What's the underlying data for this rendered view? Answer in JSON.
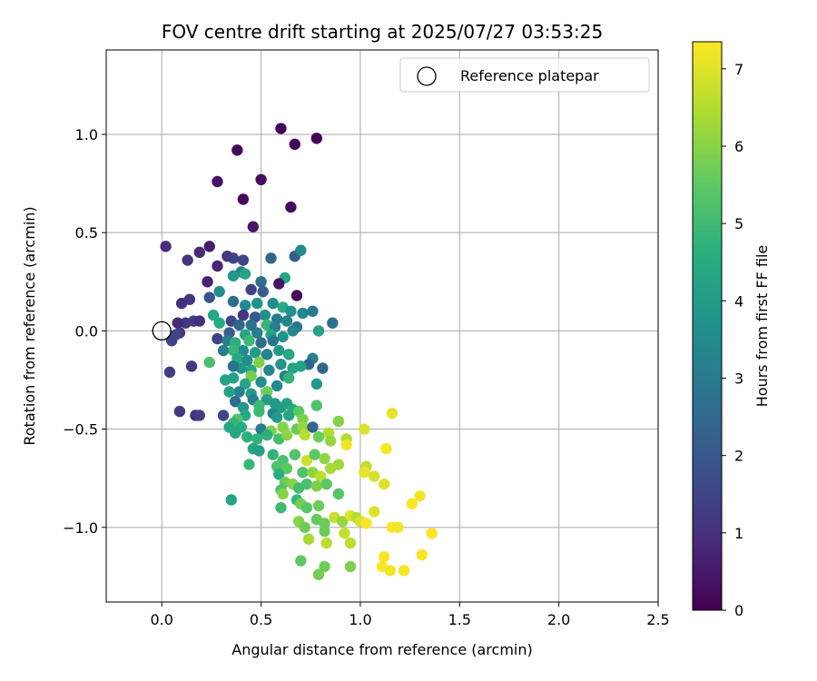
{
  "chart_data": {
    "type": "scatter",
    "title": "FOV centre drift starting at 2025/07/27 03:53:25",
    "xlabel": "Angular distance from reference (arcmin)",
    "ylabel": "Rotation from reference (arcmin)",
    "xlim": [
      -0.28,
      2.5
    ],
    "ylim": [
      -1.38,
      1.43
    ],
    "xticks": [
      0.0,
      0.5,
      1.0,
      1.5,
      2.0,
      2.5
    ],
    "xtick_labels": [
      "0.0",
      "0.5",
      "1.0",
      "1.5",
      "2.0",
      "2.5"
    ],
    "yticks": [
      -1.0,
      -0.5,
      0.0,
      0.5,
      1.0
    ],
    "ytick_labels": [
      "−1.0",
      "−0.5",
      "0.0",
      "0.5",
      "1.0"
    ],
    "grid": true,
    "legend": {
      "position": "top-right",
      "entries": [
        "Reference platepar"
      ]
    },
    "reference_point": {
      "x": 0.0,
      "y": 0.0,
      "label": "Reference platepar"
    },
    "colorbar": {
      "label": "Hours from first FF file",
      "colormap": "viridis",
      "range": [
        0,
        7.35
      ],
      "ticks": [
        0,
        1,
        2,
        3,
        4,
        5,
        6,
        7
      ],
      "tick_labels": [
        "0",
        "1",
        "2",
        "3",
        "4",
        "5",
        "6",
        "7"
      ]
    },
    "points": [
      [
        0.6,
        1.03,
        0.1
      ],
      [
        0.78,
        0.98,
        0.1
      ],
      [
        0.38,
        0.92,
        0.2
      ],
      [
        0.67,
        0.95,
        0.1
      ],
      [
        0.5,
        0.77,
        0.3
      ],
      [
        0.28,
        0.76,
        0.4
      ],
      [
        0.41,
        0.67,
        0.2
      ],
      [
        0.65,
        0.63,
        0.2
      ],
      [
        0.46,
        0.53,
        0.5
      ],
      [
        0.02,
        0.43,
        1.0
      ],
      [
        0.24,
        0.43,
        0.6
      ],
      [
        0.19,
        0.4,
        0.9
      ],
      [
        0.13,
        0.36,
        1.1
      ],
      [
        0.33,
        0.38,
        1.2
      ],
      [
        0.28,
        0.33,
        0.8
      ],
      [
        0.41,
        0.36,
        1.6
      ],
      [
        0.36,
        0.37,
        1.5
      ],
      [
        0.67,
        0.38,
        2.2
      ],
      [
        0.7,
        0.41,
        3.5
      ],
      [
        0.4,
        0.3,
        3.2
      ],
      [
        0.36,
        0.28,
        4.0
      ],
      [
        0.42,
        0.29,
        4.3
      ],
      [
        0.5,
        0.25,
        2.6
      ],
      [
        0.55,
        0.37,
        2.4
      ],
      [
        0.62,
        0.27,
        4.4
      ],
      [
        0.59,
        0.24,
        0.4
      ],
      [
        0.23,
        0.25,
        0.7
      ],
      [
        0.29,
        0.2,
        3.6
      ],
      [
        0.45,
        0.21,
        1.5
      ],
      [
        0.51,
        0.2,
        2.2
      ],
      [
        0.68,
        0.18,
        0.2
      ],
      [
        0.24,
        0.17,
        1.9
      ],
      [
        0.14,
        0.16,
        1.1
      ],
      [
        0.1,
        0.14,
        1.0
      ],
      [
        0.36,
        0.15,
        2.6
      ],
      [
        0.42,
        0.13,
        3.5
      ],
      [
        0.48,
        0.14,
        3.8
      ],
      [
        0.56,
        0.14,
        3.6
      ],
      [
        0.61,
        0.12,
        4.5
      ],
      [
        0.65,
        0.1,
        3.7
      ],
      [
        0.71,
        0.09,
        3.4
      ],
      [
        0.76,
        0.1,
        3.0
      ],
      [
        0.26,
        0.08,
        4.4
      ],
      [
        0.41,
        0.08,
        1.2
      ],
      [
        0.47,
        0.07,
        2.0
      ],
      [
        0.52,
        0.08,
        3.7
      ],
      [
        0.58,
        0.06,
        3.0
      ],
      [
        0.63,
        0.05,
        3.3
      ],
      [
        0.12,
        0.04,
        1.3
      ],
      [
        0.08,
        0.04,
        0.9
      ],
      [
        0.16,
        0.05,
        1.3
      ],
      [
        0.19,
        0.05,
        1.0
      ],
      [
        0.29,
        0.04,
        4.5
      ],
      [
        0.35,
        0.05,
        1.6
      ],
      [
        0.39,
        0.03,
        2.4
      ],
      [
        0.45,
        0.03,
        2.8
      ],
      [
        0.53,
        0.03,
        4.9
      ],
      [
        0.57,
        0.02,
        3.1
      ],
      [
        0.68,
        0.02,
        2.9
      ],
      [
        0.86,
        0.04,
        2.7
      ],
      [
        0.09,
        -0.01,
        1.2
      ],
      [
        0.07,
        -0.02,
        1.6
      ],
      [
        0.34,
        -0.01,
        2.2
      ],
      [
        0.42,
        -0.02,
        4.4
      ],
      [
        0.48,
        -0.01,
        3.1
      ],
      [
        0.55,
        -0.02,
        4.3
      ],
      [
        0.61,
        -0.03,
        3.8
      ],
      [
        0.66,
        0.0,
        3.4
      ],
      [
        0.79,
        0.0,
        4.2
      ],
      [
        0.05,
        -0.05,
        1.5
      ],
      [
        0.28,
        -0.04,
        1.5
      ],
      [
        0.33,
        -0.05,
        3.1
      ],
      [
        0.37,
        -0.06,
        4.7
      ],
      [
        0.44,
        -0.05,
        5.0
      ],
      [
        0.5,
        -0.06,
        2.6
      ],
      [
        0.56,
        -0.05,
        2.9
      ],
      [
        0.41,
        -0.1,
        3.6
      ],
      [
        0.36,
        -0.1,
        4.9
      ],
      [
        0.31,
        -0.1,
        3.2
      ],
      [
        0.47,
        -0.11,
        4.1
      ],
      [
        0.53,
        -0.12,
        3.3
      ],
      [
        0.59,
        -0.1,
        4.0
      ],
      [
        0.64,
        -0.12,
        4.4
      ],
      [
        0.38,
        -0.14,
        4.5
      ],
      [
        0.43,
        -0.15,
        3.5
      ],
      [
        0.49,
        -0.16,
        5.9
      ],
      [
        0.24,
        -0.16,
        5.2
      ],
      [
        0.15,
        -0.18,
        1.3
      ],
      [
        0.76,
        -0.14,
        3.2
      ],
      [
        0.74,
        -0.17,
        2.4
      ],
      [
        0.7,
        -0.18,
        4.3
      ],
      [
        0.6,
        -0.17,
        3.9
      ],
      [
        0.66,
        -0.19,
        4.3
      ],
      [
        0.54,
        -0.2,
        3.4
      ],
      [
        0.45,
        -0.2,
        4.4
      ],
      [
        0.4,
        -0.19,
        3.8
      ],
      [
        0.36,
        -0.18,
        2.8
      ],
      [
        0.04,
        -0.21,
        1.4
      ],
      [
        0.81,
        -0.19,
        2.5
      ],
      [
        0.45,
        -0.23,
        5.8
      ],
      [
        0.62,
        -0.23,
        3.2
      ],
      [
        0.64,
        -0.24,
        4.8
      ],
      [
        0.36,
        -0.24,
        4.2
      ],
      [
        0.32,
        -0.25,
        4.3
      ],
      [
        0.42,
        -0.27,
        4.4
      ],
      [
        0.5,
        -0.26,
        3.6
      ],
      [
        0.58,
        -0.28,
        3.5
      ],
      [
        0.78,
        -0.27,
        4.0
      ],
      [
        0.39,
        -0.31,
        3.2
      ],
      [
        0.45,
        -0.32,
        4.0
      ],
      [
        0.53,
        -0.31,
        5.7
      ],
      [
        0.34,
        -0.31,
        4.2
      ],
      [
        0.46,
        -0.35,
        3.1
      ],
      [
        0.53,
        -0.35,
        4.1
      ],
      [
        0.57,
        -0.37,
        4.0
      ],
      [
        0.63,
        -0.37,
        4.2
      ],
      [
        0.37,
        -0.36,
        2.6
      ],
      [
        0.41,
        -0.39,
        4.0
      ],
      [
        0.49,
        -0.38,
        5.0
      ],
      [
        0.6,
        -0.39,
        4.1
      ],
      [
        0.66,
        -0.4,
        4.5
      ],
      [
        0.78,
        -0.38,
        5.3
      ],
      [
        0.09,
        -0.41,
        1.2
      ],
      [
        0.17,
        -0.43,
        1.0
      ],
      [
        0.19,
        -0.43,
        1.4
      ],
      [
        0.31,
        -0.43,
        1.6
      ],
      [
        0.42,
        -0.43,
        4.5
      ],
      [
        0.49,
        -0.41,
        5.0
      ],
      [
        0.56,
        -0.42,
        3.4
      ],
      [
        0.58,
        -0.44,
        4.0
      ],
      [
        0.64,
        -0.43,
        4.4
      ],
      [
        0.69,
        -0.41,
        5.5
      ],
      [
        0.71,
        -0.45,
        5.9
      ],
      [
        0.38,
        -0.45,
        5.3
      ],
      [
        0.36,
        -0.47,
        4.9
      ],
      [
        0.34,
        -0.49,
        4.4
      ],
      [
        0.4,
        -0.49,
        4.5
      ],
      [
        0.5,
        -0.5,
        3.1
      ],
      [
        0.55,
        -0.51,
        5.9
      ],
      [
        0.61,
        -0.49,
        6.0
      ],
      [
        0.68,
        -0.5,
        5.6
      ],
      [
        0.71,
        -0.49,
        6.2
      ],
      [
        0.76,
        -0.49,
        2.4
      ],
      [
        0.89,
        -0.46,
        6.0
      ],
      [
        0.84,
        -0.52,
        6.5
      ],
      [
        0.93,
        -0.55,
        6.5
      ],
      [
        1.02,
        -0.5,
        7.0
      ],
      [
        1.16,
        -0.42,
        7.1
      ],
      [
        0.37,
        -0.52,
        4.4
      ],
      [
        0.43,
        -0.54,
        4.7
      ],
      [
        0.48,
        -0.55,
        4.8
      ],
      [
        0.53,
        -0.53,
        4.7
      ],
      [
        0.59,
        -0.55,
        5.1
      ],
      [
        0.63,
        -0.53,
        6.1
      ],
      [
        0.72,
        -0.53,
        6.6
      ],
      [
        0.79,
        -0.54,
        5.7
      ],
      [
        0.85,
        -0.56,
        6.2
      ],
      [
        0.93,
        -0.58,
        7.2
      ],
      [
        0.46,
        -0.6,
        4.4
      ],
      [
        0.49,
        -0.61,
        4.1
      ],
      [
        0.56,
        -0.63,
        4.8
      ],
      [
        0.61,
        -0.66,
        5.2
      ],
      [
        0.67,
        -0.63,
        5.3
      ],
      [
        0.73,
        -0.66,
        6.8
      ],
      [
        0.77,
        -0.63,
        5.5
      ],
      [
        0.82,
        -0.65,
        6.1
      ],
      [
        0.89,
        -0.68,
        6.3
      ],
      [
        1.13,
        -0.6,
        7.3
      ],
      [
        0.44,
        -0.68,
        4.9
      ],
      [
        0.58,
        -0.69,
        5.3
      ],
      [
        0.63,
        -0.7,
        5.5
      ],
      [
        0.71,
        -0.72,
        5.3
      ],
      [
        0.76,
        -0.72,
        6.1
      ],
      [
        0.8,
        -0.74,
        6.6
      ],
      [
        0.85,
        -0.7,
        6.4
      ],
      [
        1.03,
        -0.69,
        6.7
      ],
      [
        1.07,
        -0.74,
        6.9
      ],
      [
        1.02,
        -0.72,
        7.1
      ],
      [
        0.59,
        -0.73,
        4.6
      ],
      [
        0.62,
        -0.77,
        5.7
      ],
      [
        0.6,
        -0.81,
        5.3
      ],
      [
        0.66,
        -0.78,
        6.0
      ],
      [
        0.69,
        -0.8,
        5.1
      ],
      [
        0.73,
        -0.78,
        5.2
      ],
      [
        0.78,
        -0.79,
        5.9
      ],
      [
        0.83,
        -0.78,
        5.5
      ],
      [
        0.89,
        -0.83,
        5.4
      ],
      [
        1.12,
        -0.78,
        7.0
      ],
      [
        0.35,
        -0.86,
        4.3
      ],
      [
        0.61,
        -0.83,
        6.0
      ],
      [
        0.68,
        -0.86,
        4.9
      ],
      [
        0.7,
        -0.88,
        5.8
      ],
      [
        0.6,
        -0.9,
        5.0
      ],
      [
        0.73,
        -0.9,
        5.4
      ],
      [
        0.79,
        -0.89,
        5.7
      ],
      [
        1.07,
        -0.92,
        7.0
      ],
      [
        1.3,
        -0.84,
        7.2
      ],
      [
        1.26,
        -0.88,
        7.3
      ],
      [
        0.69,
        -0.97,
        6.0
      ],
      [
        0.72,
        -1.0,
        5.7
      ],
      [
        0.78,
        -0.96,
        5.6
      ],
      [
        0.82,
        -0.98,
        5.7
      ],
      [
        0.87,
        -0.95,
        6.7
      ],
      [
        0.91,
        -0.97,
        6.2
      ],
      [
        0.95,
        -0.94,
        7.0
      ],
      [
        0.98,
        -0.95,
        6.5
      ],
      [
        1.0,
        -0.97,
        6.9
      ],
      [
        1.03,
        -0.98,
        7.3
      ],
      [
        0.82,
        -1.02,
        5.7
      ],
      [
        0.74,
        -1.06,
        6.4
      ],
      [
        0.92,
        -1.03,
        6.7
      ],
      [
        1.16,
        -1.0,
        7.3
      ],
      [
        1.19,
        -1.0,
        7.2
      ],
      [
        1.36,
        -1.03,
        7.3
      ],
      [
        0.95,
        -1.08,
        6.6
      ],
      [
        0.83,
        -1.08,
        6.6
      ],
      [
        1.12,
        -1.15,
        7.3
      ],
      [
        1.31,
        -1.14,
        7.3
      ],
      [
        0.7,
        -1.17,
        5.5
      ],
      [
        0.82,
        -1.2,
        5.7
      ],
      [
        0.95,
        -1.2,
        5.9
      ],
      [
        1.11,
        -1.2,
        7.3
      ],
      [
        1.15,
        -1.22,
        7.2
      ],
      [
        1.22,
        -1.22,
        7.3
      ],
      [
        0.79,
        -1.24,
        5.8
      ]
    ]
  }
}
